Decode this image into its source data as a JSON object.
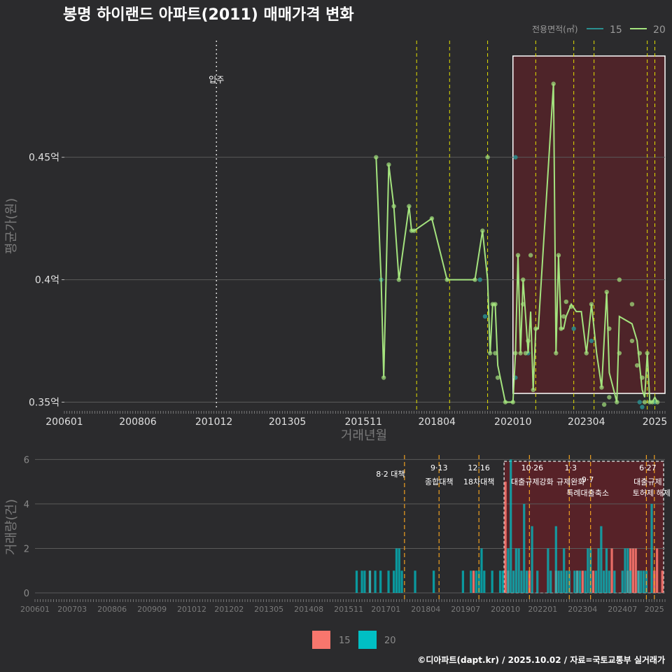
{
  "title": "봉명 하이랜드 아파트(2011) 매매가격 변화",
  "legend": {
    "title": "전용면적(㎡)",
    "items": [
      {
        "label": "15",
        "color": "#2a8f8f"
      },
      {
        "label": "20",
        "color": "#a4e37e"
      }
    ]
  },
  "footer": "©디아파트(dapt.kr) / 2025.10.02 / 자료=국토교통부 실거래가",
  "top_ylabel": "평균가(원)",
  "top_xlabel": "거래년월",
  "bottom_ylabel": "거래량(건)",
  "movein_label": "입주",
  "bottom_legend": [
    {
      "label": "15",
      "color": "#f8766d"
    },
    {
      "label": "20",
      "color": "#00bfc4"
    }
  ],
  "policy_notes": [
    {
      "date": "8·2 대책",
      "label": "8·2 대책",
      "label2": ""
    },
    {
      "date": "9·13",
      "label": "9·13",
      "label2": "종합대책"
    },
    {
      "date": "12·16",
      "label": "12·16",
      "label2": "18차대책"
    },
    {
      "date": "10·26",
      "label": "10·26",
      "label2": "대출규제강화"
    },
    {
      "date": "1·3",
      "label": "1·3",
      "label2": "규제완화"
    },
    {
      "date": "9·7",
      "label": "9·7",
      "label2": "특례대출축소"
    },
    {
      "date": "6·27",
      "label": "6·27",
      "label2": "대출규제"
    },
    {
      "date": "토허제 해제",
      "label": "",
      "label2": "토허제 해제"
    }
  ],
  "chart_data": {
    "type": "line",
    "title": "봉명 하이랜드 아파트(2011) 매매가격 변화",
    "xlabel": "거래년월",
    "ylabel": "평균가(원)",
    "x_tick_labels": [
      "200601",
      "200806",
      "201012",
      "201305",
      "201511",
      "201804",
      "202010",
      "202304",
      "2025"
    ],
    "x_tick_index": [
      0,
      29,
      59,
      88,
      118,
      147,
      177,
      206,
      233
    ],
    "y_tick_labels": [
      "0.35억",
      "0.4억",
      "0.45억"
    ],
    "y_tick_values": [
      0.35,
      0.4,
      0.45
    ],
    "ylim": [
      0.347,
      0.4985
    ],
    "xlim_index": [
      0,
      237
    ],
    "movein_index": 60,
    "policy_index": [
      139,
      152,
      167,
      186,
      201,
      209,
      230,
      233
    ],
    "highlight_index_range": [
      177,
      237
    ],
    "series": [
      {
        "name": "20",
        "color": "#a4e37e",
        "line": [
          [
            123,
            0.45
          ],
          [
            125,
            0.4
          ],
          [
            126,
            0.36
          ],
          [
            128,
            0.447
          ],
          [
            130,
            0.43
          ],
          [
            132,
            0.4
          ],
          [
            136,
            0.43
          ],
          [
            137,
            0.42
          ],
          [
            138,
            0.42
          ],
          [
            145,
            0.425
          ],
          [
            151,
            0.4
          ],
          [
            162,
            0.4
          ],
          [
            165,
            0.42
          ],
          [
            167,
            0.4
          ],
          [
            168,
            0.37
          ],
          [
            169,
            0.39
          ],
          [
            170,
            0.39
          ],
          [
            171,
            0.365
          ],
          [
            174,
            0.35
          ],
          [
            177,
            0.35
          ],
          [
            178,
            0.37
          ],
          [
            179,
            0.41
          ],
          [
            180,
            0.37
          ],
          [
            181,
            0.4
          ],
          [
            182,
            0.385
          ],
          [
            183,
            0.37
          ],
          [
            184,
            0.387
          ],
          [
            185,
            0.355
          ],
          [
            186,
            0.38
          ],
          [
            187,
            0.38
          ],
          [
            193,
            0.48
          ],
          [
            194,
            0.37
          ],
          [
            195,
            0.41
          ],
          [
            196,
            0.38
          ],
          [
            197,
            0.38
          ],
          [
            198,
            0.385
          ],
          [
            200,
            0.39
          ],
          [
            202,
            0.387
          ],
          [
            204,
            0.387
          ],
          [
            206,
            0.37
          ],
          [
            208,
            0.39
          ],
          [
            210,
            0.37
          ],
          [
            212,
            0.356
          ],
          [
            214,
            0.395
          ],
          [
            215,
            0.362
          ],
          [
            218,
            0.35
          ],
          [
            219,
            0.385
          ],
          [
            224,
            0.382
          ],
          [
            226,
            0.375
          ],
          [
            227,
            0.365
          ],
          [
            228,
            0.355
          ],
          [
            229,
            0.352
          ],
          [
            230,
            0.37
          ],
          [
            231,
            0.35
          ],
          [
            232,
            0.35
          ],
          [
            233,
            0.352
          ],
          [
            234,
            0.35
          ]
        ],
        "points": [
          [
            123,
            0.45
          ],
          [
            126,
            0.36
          ],
          [
            128,
            0.447
          ],
          [
            130,
            0.43
          ],
          [
            132,
            0.4
          ],
          [
            136,
            0.43
          ],
          [
            137,
            0.42
          ],
          [
            138,
            0.42
          ],
          [
            145,
            0.425
          ],
          [
            151,
            0.4
          ],
          [
            162,
            0.4
          ],
          [
            165,
            0.42
          ],
          [
            167,
            0.45
          ],
          [
            168,
            0.37
          ],
          [
            169,
            0.39
          ],
          [
            170,
            0.39
          ],
          [
            170,
            0.37
          ],
          [
            171,
            0.36
          ],
          [
            174,
            0.35
          ],
          [
            177,
            0.35
          ],
          [
            178,
            0.37
          ],
          [
            179,
            0.41
          ],
          [
            180,
            0.37
          ],
          [
            181,
            0.4
          ],
          [
            181,
            0.39
          ],
          [
            182,
            0.37
          ],
          [
            183,
            0.375
          ],
          [
            184,
            0.41
          ],
          [
            185,
            0.355
          ],
          [
            186,
            0.38
          ],
          [
            193,
            0.48
          ],
          [
            194,
            0.37
          ],
          [
            195,
            0.41
          ],
          [
            196,
            0.38
          ],
          [
            197,
            0.385
          ],
          [
            198,
            0.391
          ],
          [
            200,
            0.389
          ],
          [
            206,
            0.37
          ],
          [
            208,
            0.39
          ],
          [
            212,
            0.356
          ],
          [
            213,
            0.349
          ],
          [
            214,
            0.395
          ],
          [
            215,
            0.38
          ],
          [
            215,
            0.352
          ],
          [
            218,
            0.35
          ],
          [
            219,
            0.4
          ],
          [
            219,
            0.37
          ],
          [
            224,
            0.375
          ],
          [
            224,
            0.39
          ],
          [
            226,
            0.365
          ],
          [
            227,
            0.37
          ],
          [
            228,
            0.36
          ],
          [
            229,
            0.35
          ],
          [
            230,
            0.37
          ],
          [
            231,
            0.35
          ],
          [
            232,
            0.35
          ],
          [
            234,
            0.35
          ]
        ]
      },
      {
        "name": "15",
        "color": "#2a8f8f",
        "points": [
          [
            125,
            0.4
          ],
          [
            164,
            0.4
          ],
          [
            166,
            0.385
          ],
          [
            178,
            0.36
          ],
          [
            178,
            0.45
          ],
          [
            183,
            0.37
          ],
          [
            201,
            0.38
          ],
          [
            208,
            0.375
          ],
          [
            227,
            0.35
          ],
          [
            228,
            0.348
          ],
          [
            233,
            0.35
          ]
        ]
      }
    ]
  },
  "volume_data": {
    "type": "bar",
    "xlabel": "",
    "ylabel": "거래량(건)",
    "ylim": [
      0,
      6.2
    ],
    "y_tick_labels": [
      "0",
      "2",
      "4",
      "6"
    ],
    "y_tick_values": [
      0,
      2,
      4,
      6
    ],
    "x_tick_labels": [
      "200601",
      "200703",
      "200806",
      "200909",
      "201012",
      "201202",
      "201305",
      "201408",
      "201511",
      "201701",
      "201804",
      "201907",
      "202010",
      "202201",
      "202304",
      "202407",
      "2025"
    ],
    "x_tick_index": [
      0,
      14,
      29,
      44,
      59,
      73,
      88,
      103,
      118,
      132,
      147,
      162,
      177,
      191,
      206,
      221,
      233
    ],
    "series": [
      {
        "name": "15",
        "color": "#f8766d",
        "bars": [
          [
            126,
            1
          ],
          [
            165,
            1
          ],
          [
            177,
            5
          ],
          [
            178,
            1
          ],
          [
            186,
            1
          ],
          [
            196,
            1
          ],
          [
            204,
            1
          ],
          [
            206,
            1
          ],
          [
            210,
            1
          ],
          [
            217,
            2
          ],
          [
            223,
            1
          ],
          [
            224,
            2
          ],
          [
            225,
            2
          ],
          [
            226,
            2
          ],
          [
            227,
            1
          ],
          [
            233,
            1
          ],
          [
            234,
            2
          ],
          [
            236,
            1
          ]
        ]
      },
      {
        "name": "20",
        "color": "#00bfc4",
        "bars": [
          [
            121,
            1
          ],
          [
            123,
            1
          ],
          [
            124,
            1
          ],
          [
            126,
            1
          ],
          [
            128,
            1
          ],
          [
            130,
            1
          ],
          [
            133,
            1
          ],
          [
            135,
            1
          ],
          [
            136,
            2
          ],
          [
            137,
            2
          ],
          [
            138,
            1
          ],
          [
            143,
            1
          ],
          [
            150,
            1
          ],
          [
            161,
            1
          ],
          [
            164,
            1
          ],
          [
            166,
            1
          ],
          [
            167,
            1
          ],
          [
            168,
            2
          ],
          [
            169,
            1
          ],
          [
            172,
            1
          ],
          [
            175,
            1
          ],
          [
            176,
            1
          ],
          [
            178,
            2
          ],
          [
            179,
            6
          ],
          [
            180,
            1
          ],
          [
            181,
            2
          ],
          [
            182,
            2
          ],
          [
            183,
            1
          ],
          [
            184,
            4
          ],
          [
            185,
            1
          ],
          [
            187,
            3
          ],
          [
            189,
            1
          ],
          [
            193,
            2
          ],
          [
            194,
            1
          ],
          [
            196,
            3
          ],
          [
            197,
            1
          ],
          [
            198,
            1
          ],
          [
            199,
            2
          ],
          [
            200,
            1
          ],
          [
            201,
            1
          ],
          [
            203,
            1
          ],
          [
            204,
            1
          ],
          [
            205,
            1
          ],
          [
            207,
            1
          ],
          [
            208,
            2
          ],
          [
            209,
            2
          ],
          [
            211,
            1
          ],
          [
            212,
            2
          ],
          [
            213,
            3
          ],
          [
            214,
            1
          ],
          [
            215,
            2
          ],
          [
            216,
            1
          ],
          [
            218,
            1
          ],
          [
            221,
            1
          ],
          [
            222,
            2
          ],
          [
            223,
            2
          ],
          [
            224,
            1
          ],
          [
            227,
            1
          ],
          [
            228,
            1
          ],
          [
            229,
            1
          ],
          [
            230,
            1
          ],
          [
            232,
            4
          ]
        ]
      }
    ]
  }
}
